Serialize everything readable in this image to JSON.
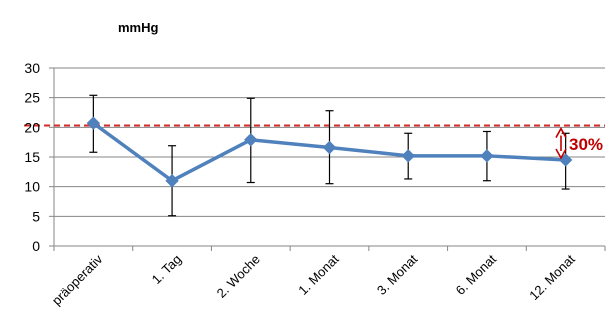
{
  "chart_data": {
    "type": "line",
    "title": "",
    "unit_label": "mmHg",
    "xlabel": "",
    "ylabel": "",
    "ylim": [
      0,
      30
    ],
    "yticks": [
      0,
      5,
      10,
      15,
      20,
      25,
      30
    ],
    "grid": true,
    "categories": [
      "präoperativ",
      "1. Tag",
      "2. Woche",
      "1. Monat",
      "3. Monat",
      "6. Monat",
      "12. Monat"
    ],
    "series": [
      {
        "values": [
          20.7,
          11.0,
          17.9,
          16.6,
          15.2,
          15.2,
          14.5
        ],
        "error_low": [
          15.8,
          5.1,
          10.7,
          10.5,
          11.3,
          11.0,
          9.6
        ],
        "error_high": [
          25.4,
          16.9,
          24.9,
          22.8,
          19.0,
          19.3,
          19.0
        ],
        "color": "#4F81BD"
      }
    ],
    "reference_line": {
      "value": 20.3,
      "color": "#D42A2A"
    },
    "annotation": {
      "text": "30%",
      "from": 20.3,
      "to": 14.5,
      "color": "#C00000"
    }
  }
}
